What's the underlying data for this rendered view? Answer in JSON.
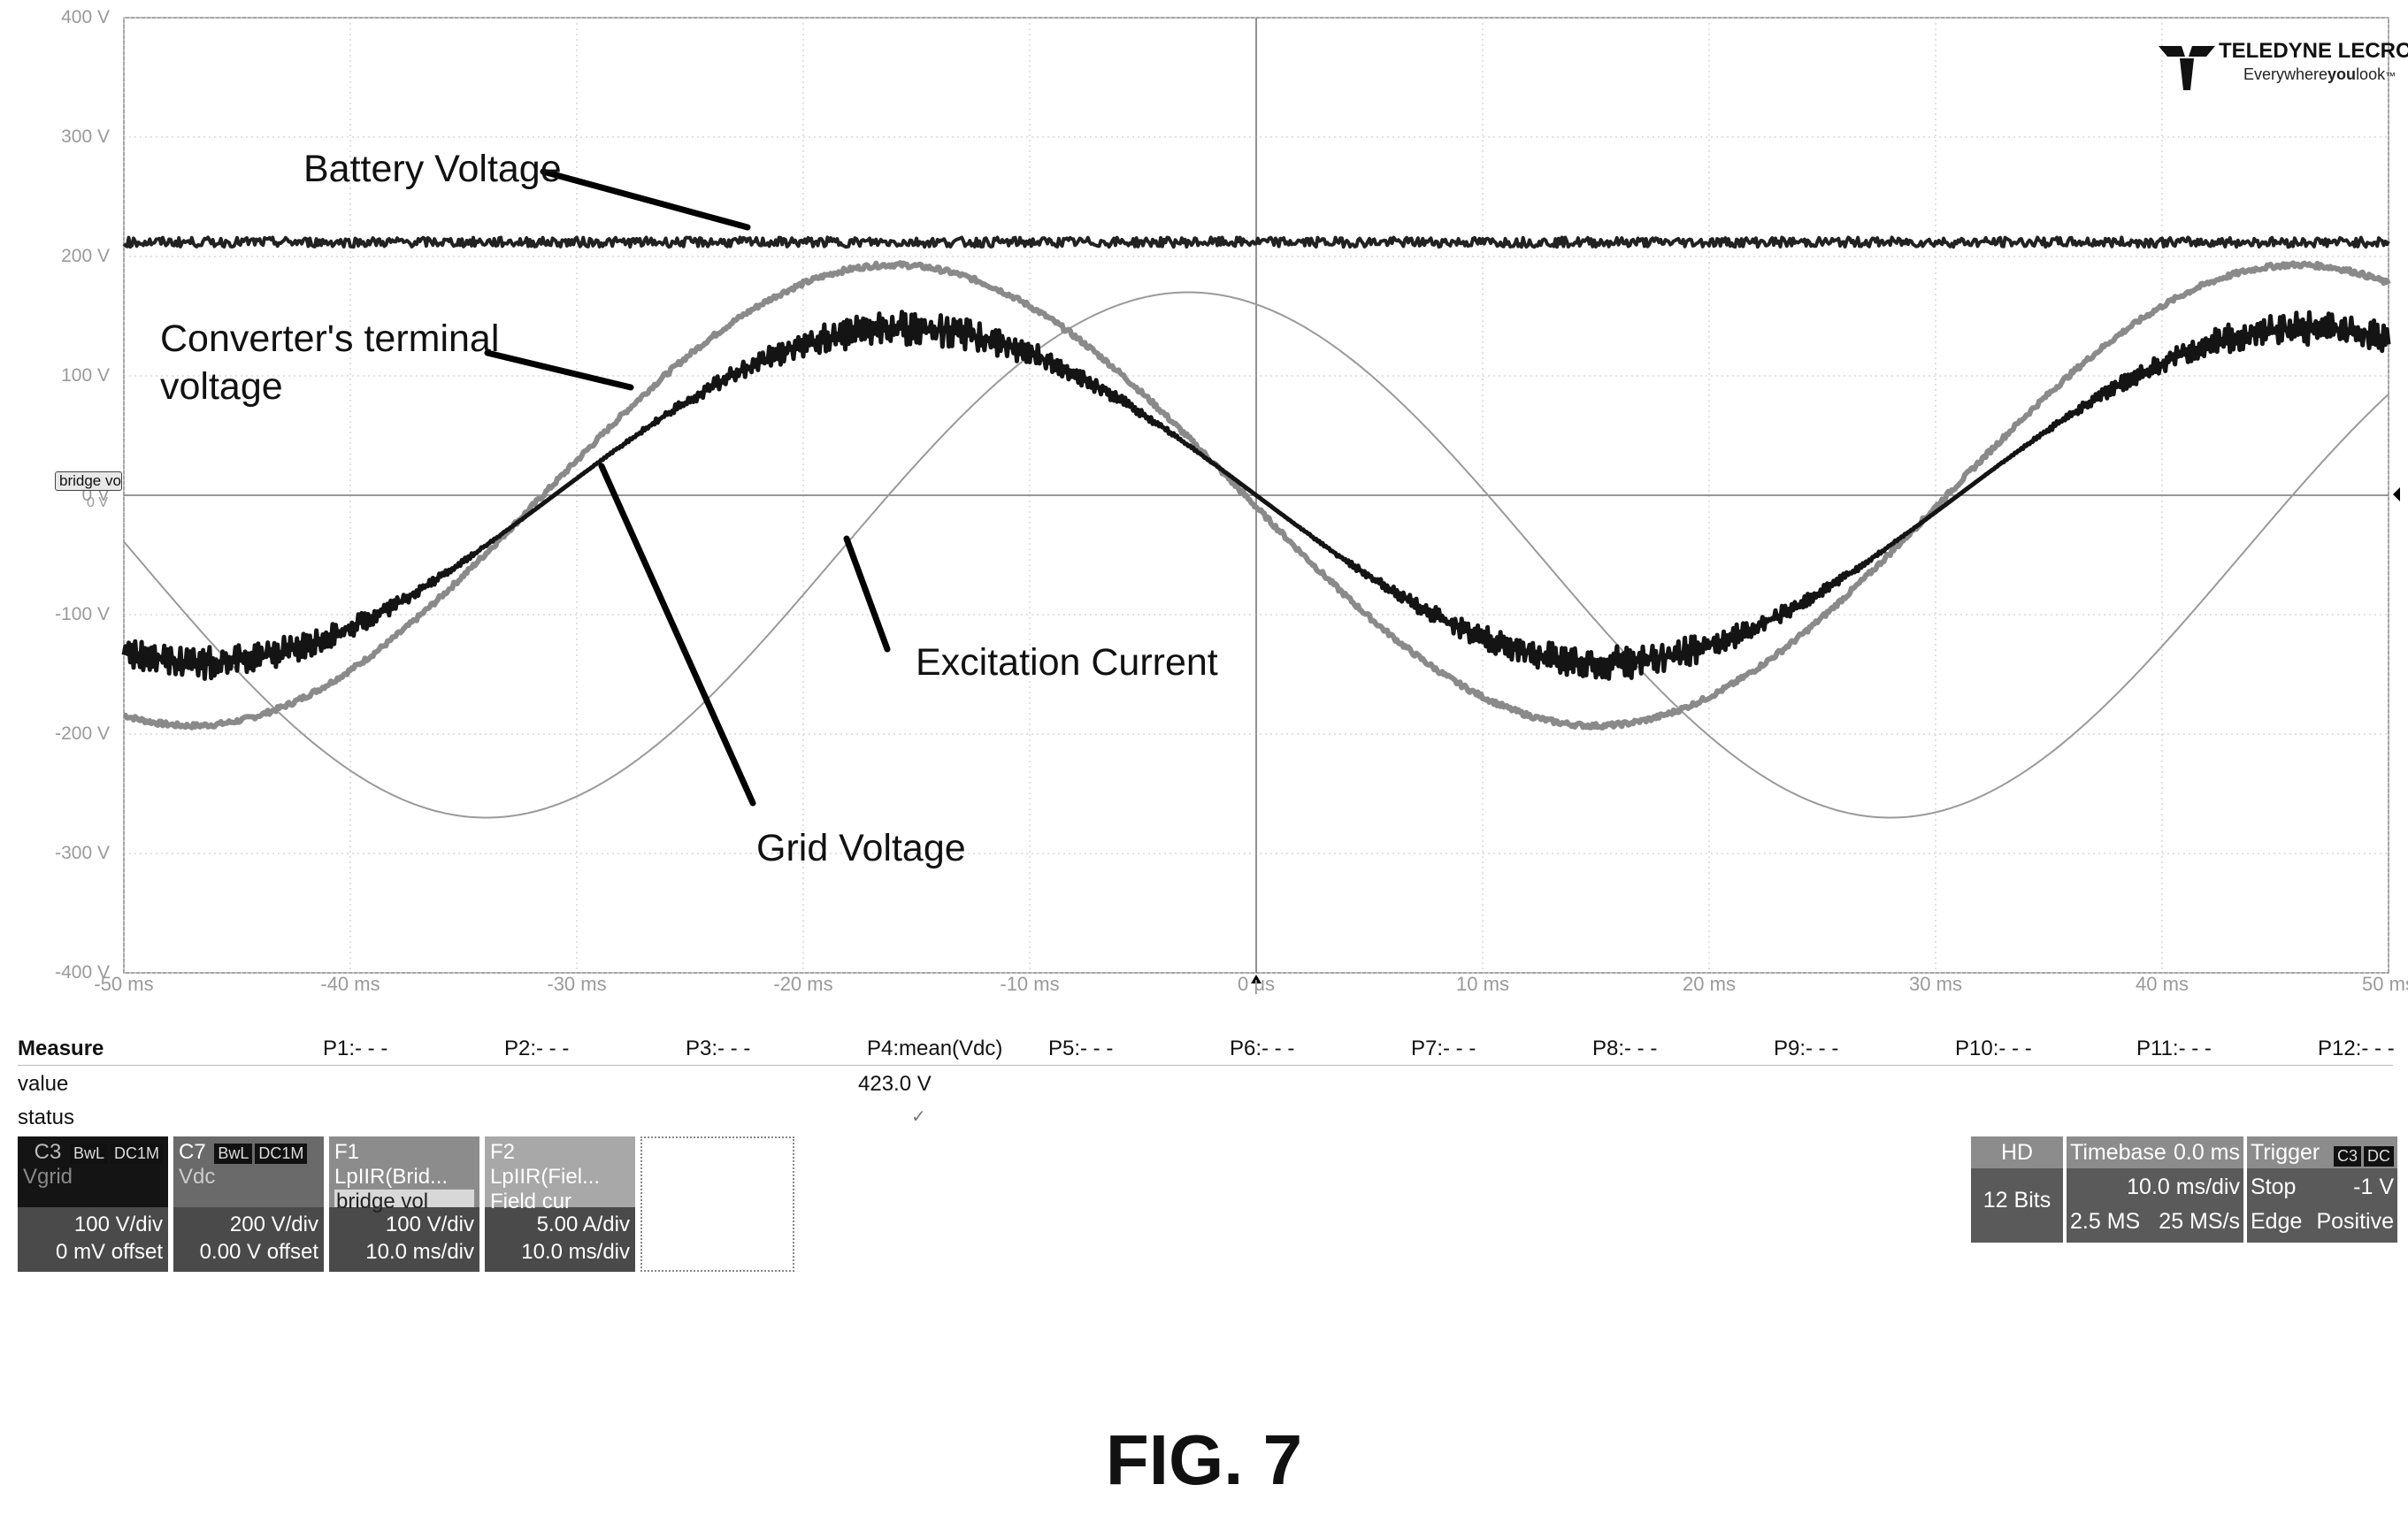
{
  "figure_label": "FIG. 7",
  "logo": {
    "brand": "TELEDYNE LECROY",
    "tagline_plain": "Everywhere",
    "tagline_bold": "you",
    "tagline_end": "look",
    "tm": "™"
  },
  "channel_marker": "bridge vol",
  "zero_marker": "0 V",
  "annotations": {
    "battery": "Battery Voltage",
    "converter_line1": "Converter's terminal",
    "converter_line2": "voltage",
    "excitation": "Excitation Current",
    "grid": "Grid Voltage"
  },
  "measure": {
    "header": "Measure",
    "row_value": "value",
    "row_status": "status",
    "params": [
      "P1:- - -",
      "P2:- - -",
      "P3:- - -",
      "P4:mean(Vdc)",
      "P5:- - -",
      "P6:- - -",
      "P7:- - -",
      "P8:- - -",
      "P9:- - -",
      "P10:- - -",
      "P11:- - -",
      "P12:- - -"
    ],
    "p4_value": "423.0 V",
    "p4_status": "✓"
  },
  "channels": [
    {
      "name": "C3",
      "tags": [
        "BwL",
        "DC1M"
      ],
      "sub": "Vgrid",
      "scale": "100 V/div",
      "offset": "0 mV offset",
      "bg": "#141414"
    },
    {
      "name": "C7",
      "tags": [
        "BwL",
        "DC1M"
      ],
      "sub": "Vdc",
      "scale": "200 V/div",
      "offset": "0.00 V offset",
      "bg": "#6a6a6a"
    },
    {
      "name": "F1",
      "func": "LpIIR(Brid...",
      "sub": "bridge vol",
      "scale": "100 V/div",
      "offset": "10.0 ms/div",
      "bg": "#8c8c8c"
    },
    {
      "name": "F2",
      "func": "LpIIR(Fiel...",
      "sub": "Field cur",
      "scale": "5.00 A/div",
      "offset": "10.0 ms/div",
      "bg": "#a8a8a8"
    }
  ],
  "acq": {
    "hd": "HD",
    "bits": "12 Bits",
    "timebase_label": "Timebase",
    "timebase_delay": "0.0 ms",
    "timebase_div": "10.0 ms/div",
    "samples": "2.5 MS",
    "rate": "25 MS/s",
    "trigger_label": "Trigger",
    "trigger_tags": [
      "C3",
      "DC"
    ],
    "trigger_mode": "Stop",
    "trigger_level": "-1 V",
    "trigger_type": "Edge",
    "trigger_slope": "Positive"
  },
  "chart_data": {
    "type": "line",
    "x_tick_labels": [
      "-50 ms",
      "-40 ms",
      "-30 ms",
      "-20 ms",
      "-10 ms",
      "0 μs",
      "10 ms",
      "20 ms",
      "30 ms",
      "40 ms",
      "50 ms"
    ],
    "y_tick_labels": [
      "400 V",
      "300 V",
      "200 V",
      "100 V",
      "0 V",
      "-100 V",
      "-200 V",
      "-300 V",
      "-400 V"
    ],
    "xlim": [
      -50,
      50
    ],
    "ylim": [
      -400,
      400
    ],
    "grid": true,
    "series": [
      {
        "name": "Battery Voltage",
        "kind": "constant",
        "value": 212,
        "noise": 4,
        "color": "#222222",
        "width": 4
      },
      {
        "name": "Converter's terminal voltage",
        "kind": "sine",
        "amplitude": 193,
        "period_ms": 62,
        "zero_cross_ms": -31.5,
        "color": "#8a8a8a",
        "width": 6
      },
      {
        "name": "Grid Voltage",
        "kind": "sine",
        "amplitude": 140,
        "period_ms": 62,
        "zero_cross_ms": -31,
        "color": "#141414",
        "width": 5,
        "ripple": 14
      },
      {
        "name": "Excitation Current",
        "kind": "sine",
        "amplitude": 220,
        "period_ms": 62,
        "zero_cross_ms": -18.5,
        "offset": -50,
        "color": "#9a9a9a",
        "width": 2
      }
    ]
  }
}
